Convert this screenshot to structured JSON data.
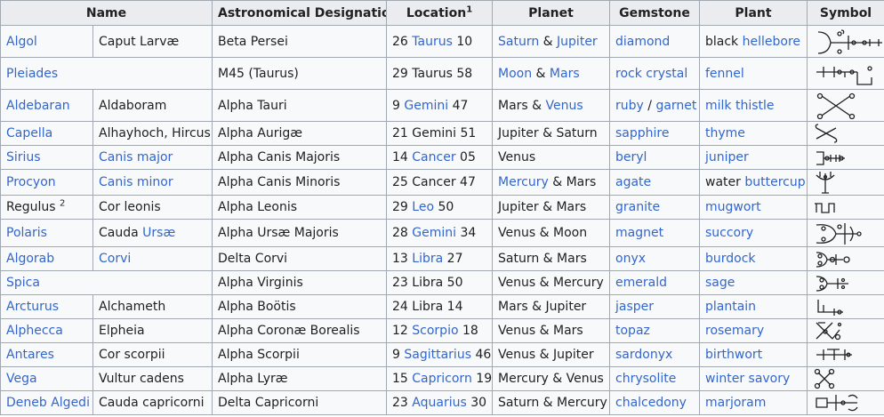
{
  "headers": {
    "name": "Name",
    "designation": "Astronomical Designation",
    "location": "Location",
    "location_sup": "1",
    "planet": "Planet",
    "gemstone": "Gemstone",
    "plant": "Plant",
    "symbol": "Symbol"
  },
  "rows": [
    {
      "name": "Algol",
      "alt": "Caput Larvæ",
      "designation": "Beta Persei",
      "loc_num": "26",
      "loc_sign": "Taurus",
      "loc_deg": "10",
      "planet1": "Saturn",
      "planet_sep": "&",
      "planet2": "Jupiter",
      "gem1": "diamond",
      "gem_sep": "",
      "gem2": "",
      "plant_prefix": "black",
      "plant": "hellebore",
      "symbol": "algol-sigil-icon"
    },
    {
      "name": "Pleiades",
      "alt": "",
      "designation": "M45 (Taurus)",
      "loc_num": "29",
      "loc_sign": "Taurus",
      "loc_deg": "58",
      "planet1": "Moon",
      "planet_sep": "&",
      "planet2": "Mars",
      "gem1": "rock crystal",
      "gem_sep": "",
      "gem2": "",
      "plant_prefix": "",
      "plant": "fennel",
      "symbol": "pleiades-sigil-icon"
    },
    {
      "name": "Aldebaran",
      "alt": "Aldaboram",
      "designation": "Alpha Tauri",
      "loc_num": "9",
      "loc_sign": "Gemini",
      "loc_deg": "47",
      "planet1": "Mars",
      "planet_sep": "&",
      "planet2": "Venus",
      "gem1": "ruby",
      "gem_sep": "/",
      "gem2": "garnet",
      "plant_prefix": "",
      "plant": "milk thistle",
      "symbol": "aldebaran-sigil-icon"
    },
    {
      "name": "Capella",
      "alt": "Alhayhoch, Hircus",
      "designation": "Alpha Aurigæ",
      "loc_num": "21",
      "loc_sign": "Gemini",
      "loc_deg": "51",
      "planet1": "Jupiter",
      "planet_sep": "&",
      "planet2": "Saturn",
      "gem1": "sapphire",
      "gem_sep": "",
      "gem2": "",
      "plant_prefix": "",
      "plant": "thyme",
      "symbol": "capella-sigil-icon"
    },
    {
      "name": "Sirius",
      "alt": "Canis major",
      "designation": "Alpha Canis Majoris",
      "loc_num": "14",
      "loc_sign": "Cancer",
      "loc_deg": "05",
      "planet1": "Venus",
      "planet_sep": "",
      "planet2": "",
      "gem1": "beryl",
      "gem_sep": "",
      "gem2": "",
      "plant_prefix": "",
      "plant": "juniper",
      "symbol": "sirius-sigil-icon"
    },
    {
      "name": "Procyon",
      "alt": "Canis minor",
      "designation": "Alpha Canis Minoris",
      "loc_num": "25",
      "loc_sign": "Cancer",
      "loc_deg": "47",
      "planet1": "Mercury",
      "planet_sep": "&",
      "planet2": "Mars",
      "gem1": "agate",
      "gem_sep": "",
      "gem2": "",
      "plant_prefix": "water",
      "plant": "buttercup",
      "symbol": "procyon-sigil-icon"
    },
    {
      "name": "Regulus",
      "name_sup": "2",
      "alt": "Cor leonis",
      "designation": "Alpha Leonis",
      "loc_num": "29",
      "loc_sign": "Leo",
      "loc_deg": "50",
      "planet1": "Jupiter",
      "planet_sep": "&",
      "planet2": "Mars",
      "gem1": "granite",
      "gem_sep": "",
      "gem2": "",
      "plant_prefix": "",
      "plant": "mugwort",
      "symbol": "regulus-sigil-icon"
    },
    {
      "name": "Polaris",
      "alt_prefix": "Cauda",
      "alt": "Ursæ",
      "designation": "Alpha Ursæ Majoris",
      "loc_num": "28",
      "loc_sign": "Gemini",
      "loc_deg": "34",
      "planet1": "Venus",
      "planet_sep": "&",
      "planet2": "Moon",
      "gem1": "magnet",
      "gem_sep": "",
      "gem2": "",
      "plant_prefix": "",
      "plant": "succory",
      "symbol": "polaris-sigil-icon"
    },
    {
      "name": "Algorab",
      "alt": "Corvi",
      "designation": "Delta Corvi",
      "loc_num": "13",
      "loc_sign": "Libra",
      "loc_deg": "27",
      "planet1": "Saturn",
      "planet_sep": "&",
      "planet2": "Mars",
      "gem1": "onyx",
      "gem_sep": "",
      "gem2": "",
      "plant_prefix": "",
      "plant": "burdock",
      "symbol": "algorab-sigil-icon"
    },
    {
      "name": "Spica",
      "alt": "",
      "designation": "Alpha Virginis",
      "loc_num": "23",
      "loc_sign": "Libra",
      "loc_deg": "50",
      "planet1": "Venus",
      "planet_sep": "&",
      "planet2": "Mercury",
      "gem1": "emerald",
      "gem_sep": "",
      "gem2": "",
      "plant_prefix": "",
      "plant": "sage",
      "symbol": "spica-sigil-icon"
    },
    {
      "name": "Arcturus",
      "alt": "Alchameth",
      "designation": "Alpha Boötis",
      "loc_num": "24",
      "loc_sign": "Libra",
      "loc_deg": "14",
      "planet1": "Mars",
      "planet_sep": "&",
      "planet2": "Jupiter",
      "gem1": "jasper",
      "gem_sep": "",
      "gem2": "",
      "plant_prefix": "",
      "plant": "plantain",
      "symbol": "arcturus-sigil-icon"
    },
    {
      "name": "Alphecca",
      "alt": "Elpheia",
      "designation": "Alpha Coronæ Borealis",
      "loc_num": "12",
      "loc_sign": "Scorpio",
      "loc_deg": "18",
      "planet1": "Venus",
      "planet_sep": "&",
      "planet2": "Mars",
      "gem1": "topaz",
      "gem_sep": "",
      "gem2": "",
      "plant_prefix": "",
      "plant": "rosemary",
      "symbol": "alphecca-sigil-icon"
    },
    {
      "name": "Antares",
      "alt": "Cor scorpii",
      "designation": "Alpha Scorpii",
      "loc_num": "9",
      "loc_sign": "Sagittarius",
      "loc_deg": "46",
      "planet1": "Venus",
      "planet_sep": "&",
      "planet2": "Jupiter",
      "gem1": "sardonyx",
      "gem_sep": "",
      "gem2": "",
      "plant_prefix": "",
      "plant": "birthwort",
      "symbol": "antares-sigil-icon"
    },
    {
      "name": "Vega",
      "alt": "Vultur cadens",
      "designation": "Alpha Lyræ",
      "loc_num": "15",
      "loc_sign": "Capricorn",
      "loc_deg": "19",
      "planet1": "Mercury",
      "planet_sep": "&",
      "planet2": "Venus",
      "gem1": "chrysolite",
      "gem_sep": "",
      "gem2": "",
      "plant_prefix": "",
      "plant": "winter savory",
      "symbol": "vega-sigil-icon"
    },
    {
      "name": "Deneb Algedi",
      "alt": "Cauda capricorni",
      "designation": "Delta Capricorni",
      "loc_num": "23",
      "loc_sign": "Aquarius",
      "loc_deg": "30",
      "planet1": "Saturn",
      "planet_sep": "&",
      "planet2": "Mercury",
      "gem1": "chalcedony",
      "gem_sep": "",
      "gem2": "",
      "plant_prefix": "",
      "plant": "marjoram",
      "symbol": "deneb-algedi-sigil-icon"
    }
  ],
  "colors": {
    "link": "#3366cc",
    "text": "#202122",
    "header_bg": "#eaecf0",
    "cell_bg": "#f8f9fa",
    "border": "#a2a9b1"
  }
}
